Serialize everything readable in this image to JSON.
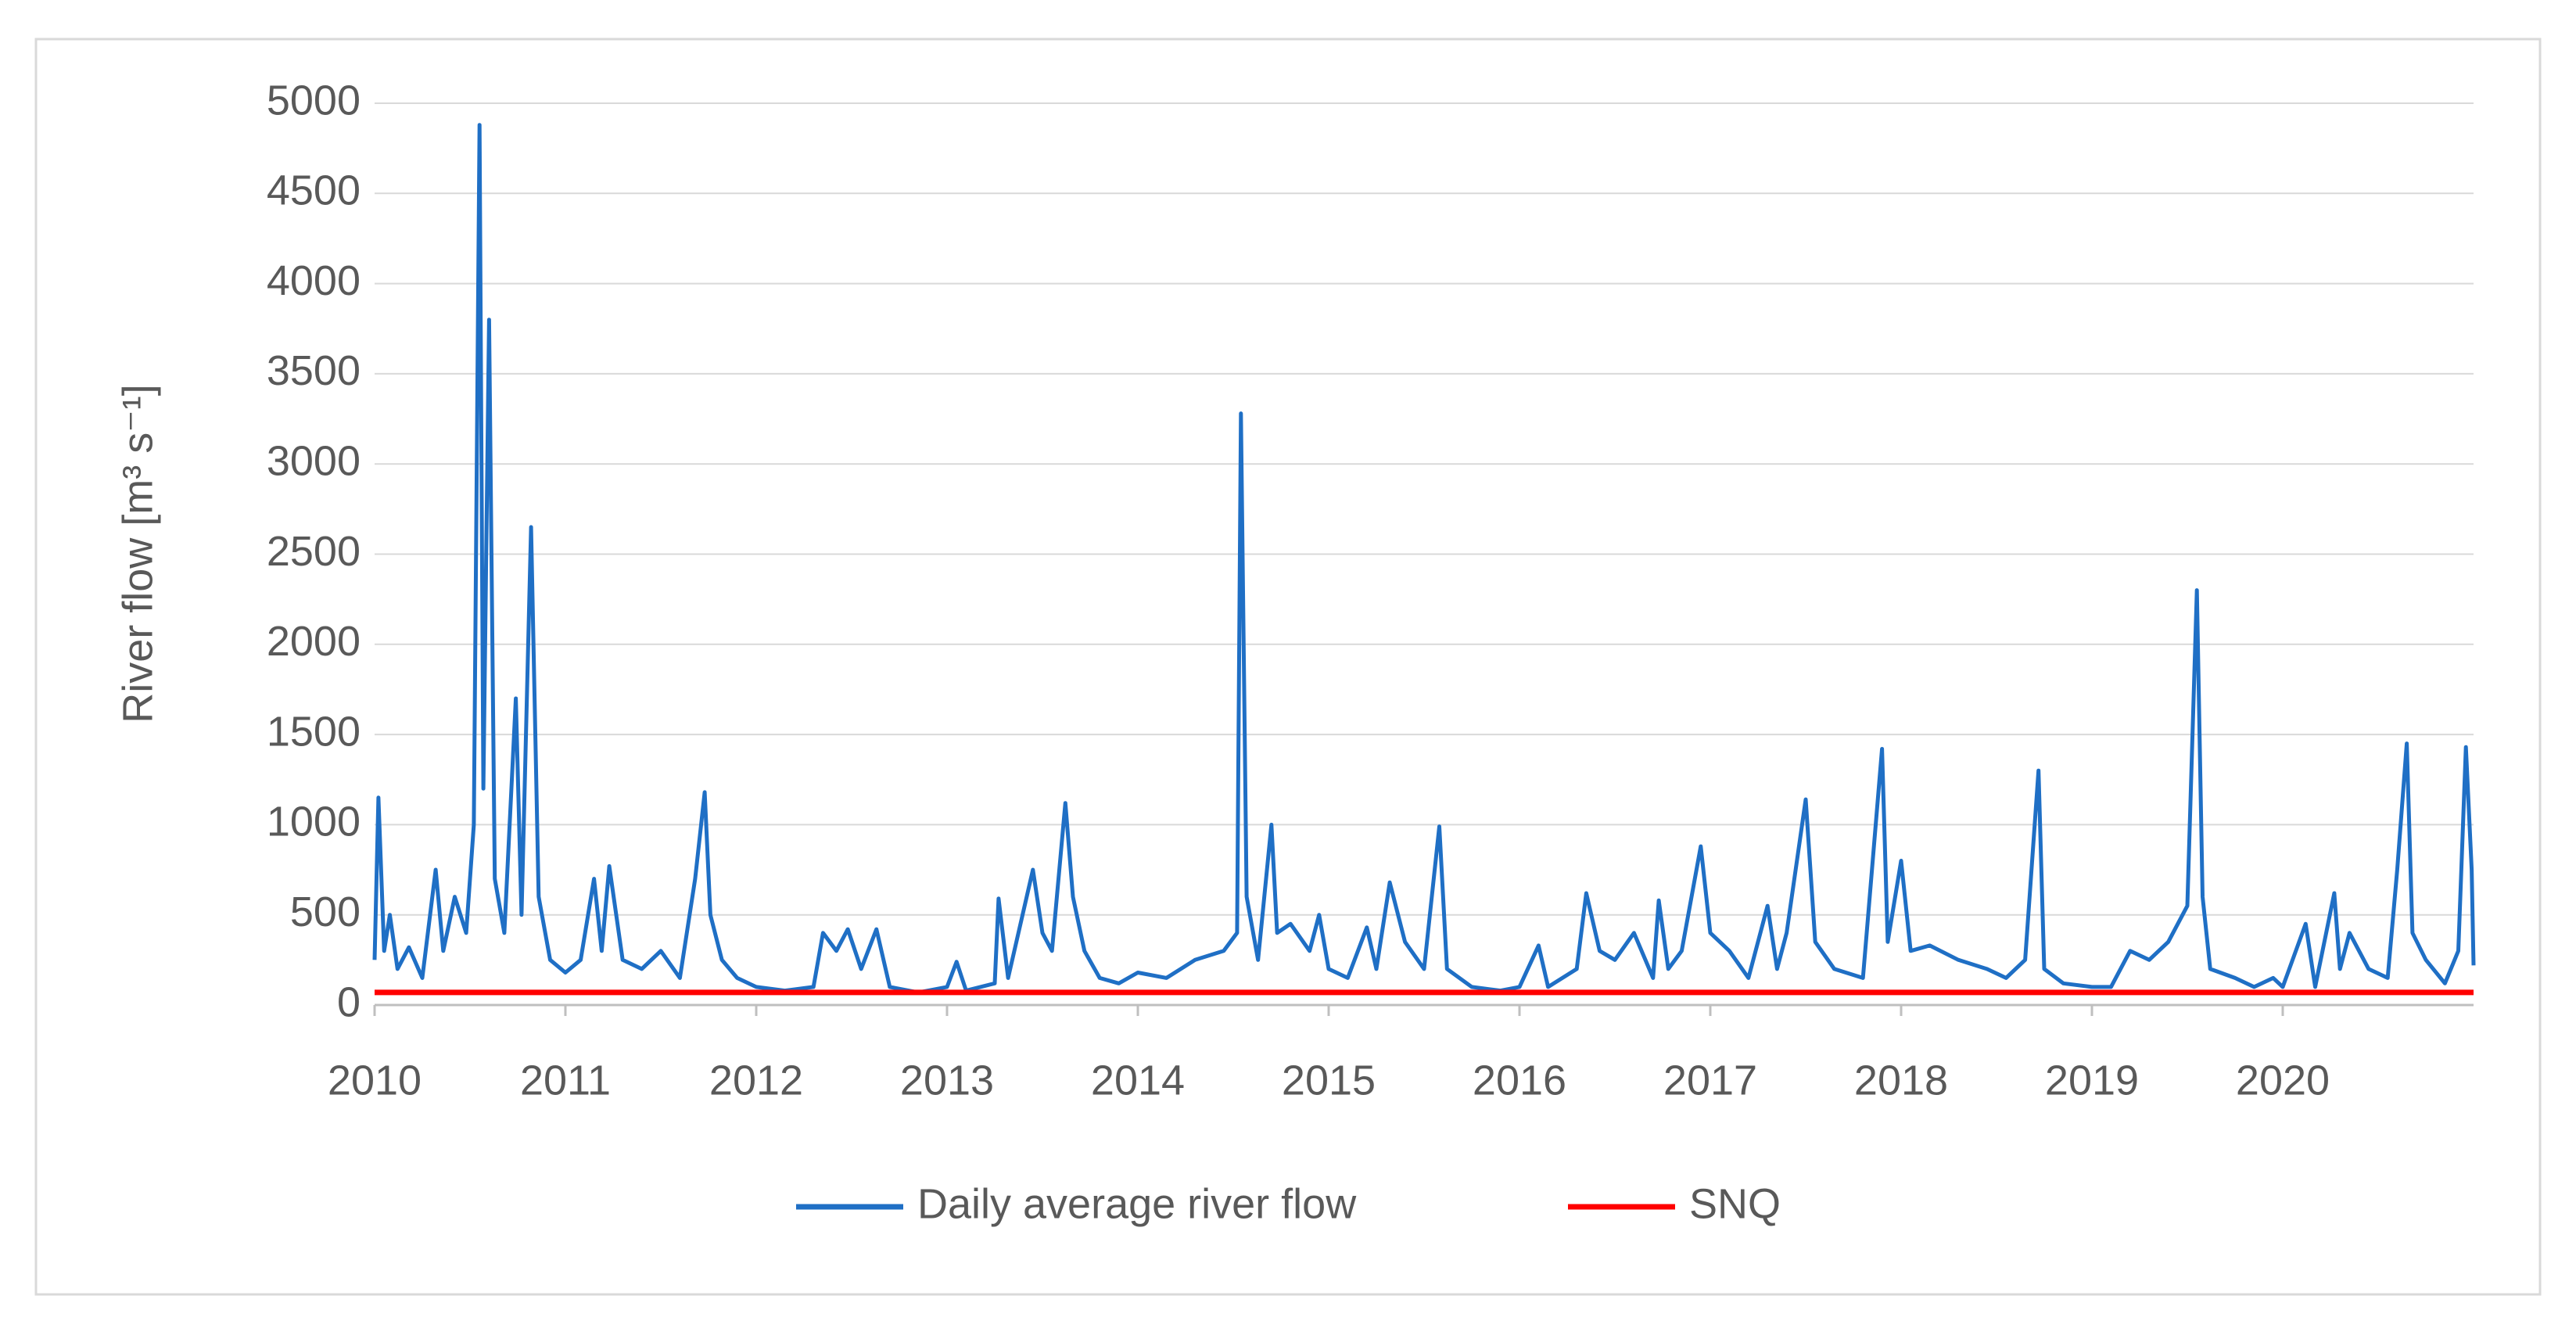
{
  "chart_data": {
    "type": "line",
    "y_label": "River flow [m³ s⁻¹]",
    "xlim": [
      2010,
      2021
    ],
    "xticks": [
      2010,
      2011,
      2012,
      2013,
      2014,
      2015,
      2016,
      2017,
      2018,
      2019,
      2020
    ],
    "ylim": [
      0,
      5000
    ],
    "yticks": [
      0,
      500,
      1000,
      1500,
      2000,
      2500,
      3000,
      3500,
      4000,
      4500,
      5000
    ],
    "grid": true,
    "legend": "bottom",
    "series": [
      {
        "name": "Daily average river flow",
        "color": "#1f6fc5",
        "x": [
          2010.0,
          2010.02,
          2010.05,
          2010.08,
          2010.12,
          2010.18,
          2010.25,
          2010.32,
          2010.36,
          2010.42,
          2010.48,
          2010.52,
          2010.55,
          2010.57,
          2010.6,
          2010.63,
          2010.68,
          2010.74,
          2010.77,
          2010.82,
          2010.86,
          2010.92,
          2011.0,
          2011.08,
          2011.15,
          2011.19,
          2011.23,
          2011.3,
          2011.4,
          2011.5,
          2011.6,
          2011.68,
          2011.73,
          2011.76,
          2011.82,
          2011.9,
          2012.0,
          2012.15,
          2012.3,
          2012.35,
          2012.42,
          2012.48,
          2012.55,
          2012.63,
          2012.7,
          2012.85,
          2013.0,
          2013.05,
          2013.1,
          2013.25,
          2013.27,
          2013.32,
          2013.45,
          2013.5,
          2013.55,
          2013.62,
          2013.66,
          2013.72,
          2013.8,
          2013.9,
          2014.0,
          2014.15,
          2014.3,
          2014.45,
          2014.52,
          2014.54,
          2014.57,
          2014.63,
          2014.7,
          2014.73,
          2014.8,
          2014.9,
          2014.95,
          2015.0,
          2015.1,
          2015.2,
          2015.25,
          2015.32,
          2015.4,
          2015.5,
          2015.58,
          2015.62,
          2015.75,
          2015.9,
          2016.0,
          2016.1,
          2016.15,
          2016.3,
          2016.35,
          2016.42,
          2016.5,
          2016.6,
          2016.7,
          2016.73,
          2016.78,
          2016.85,
          2016.95,
          2017.0,
          2017.1,
          2017.2,
          2017.3,
          2017.35,
          2017.4,
          2017.5,
          2017.55,
          2017.65,
          2017.8,
          2017.9,
          2017.93,
          2018.0,
          2018.05,
          2018.15,
          2018.3,
          2018.45,
          2018.55,
          2018.65,
          2018.72,
          2018.75,
          2018.85,
          2019.0,
          2019.1,
          2019.2,
          2019.3,
          2019.4,
          2019.5,
          2019.55,
          2019.58,
          2019.62,
          2019.75,
          2019.85,
          2019.95,
          2020.0,
          2020.12,
          2020.17,
          2020.27,
          2020.3,
          2020.35,
          2020.45,
          2020.55,
          2020.6,
          2020.65,
          2020.68,
          2020.75,
          2020.85,
          2020.92,
          2020.96,
          2020.99,
          2021.0
        ],
        "values": [
          250,
          1150,
          300,
          500,
          200,
          320,
          150,
          750,
          300,
          600,
          400,
          1000,
          4880,
          1200,
          3800,
          700,
          400,
          1700,
          500,
          2650,
          600,
          250,
          180,
          250,
          700,
          300,
          770,
          250,
          200,
          300,
          150,
          700,
          1180,
          500,
          250,
          150,
          100,
          80,
          100,
          400,
          300,
          420,
          200,
          420,
          100,
          70,
          100,
          240,
          80,
          120,
          590,
          150,
          750,
          400,
          300,
          1120,
          600,
          300,
          150,
          120,
          180,
          150,
          250,
          300,
          400,
          3280,
          600,
          250,
          1000,
          400,
          450,
          300,
          500,
          200,
          150,
          430,
          200,
          680,
          350,
          200,
          990,
          200,
          100,
          80,
          100,
          330,
          100,
          200,
          620,
          300,
          250,
          400,
          150,
          580,
          200,
          300,
          880,
          400,
          300,
          150,
          550,
          200,
          400,
          1140,
          350,
          200,
          150,
          1420,
          350,
          800,
          300,
          330,
          250,
          200,
          150,
          250,
          1300,
          200,
          120,
          100,
          100,
          300,
          250,
          350,
          550,
          2300,
          600,
          200,
          150,
          100,
          150,
          100,
          450,
          100,
          620,
          200,
          400,
          200,
          150,
          750,
          1450,
          400,
          250,
          120,
          300,
          1430,
          750,
          220
        ]
      },
      {
        "name": "SNQ",
        "color": "#ff0000",
        "x": [
          2010,
          2021
        ],
        "values": [
          70,
          70
        ]
      }
    ]
  }
}
